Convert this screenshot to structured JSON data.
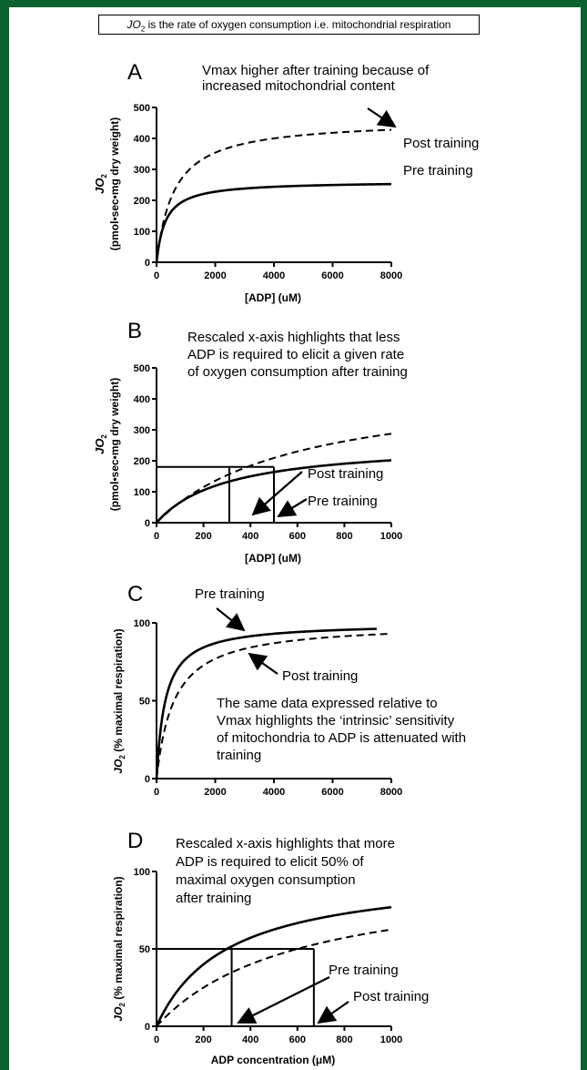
{
  "header": {
    "caption_jo": "JO",
    "caption_sub": "2",
    "caption_rest": " is the rate of oxygen consumption i.e. mitochondrial respiration"
  },
  "chart_data": [
    {
      "panel": "A",
      "type": "line",
      "xlabel": "[ADP] (uM)",
      "ylabel_main": "JO",
      "ylabel_sub": "2",
      "ylabel_units": "(pmol•sec•mg dry weight)",
      "xlim": [
        0,
        8000
      ],
      "ylim": [
        0,
        500
      ],
      "xticks": [
        0,
        2000,
        4000,
        6000,
        8000
      ],
      "yticks": [
        0,
        100,
        200,
        300,
        400,
        500
      ],
      "annotation": [
        "Vmax higher after training because of",
        "increased mitochondrial content"
      ],
      "series": [
        {
          "name": "Post training",
          "style": "dashed",
          "vmax": 460,
          "km": 600
        },
        {
          "name": "Pre training",
          "style": "solid",
          "vmax": 262,
          "km": 300
        }
      ],
      "labels": [
        "Post training",
        "Pre training"
      ]
    },
    {
      "panel": "B",
      "type": "line",
      "xlabel": "[ADP] (uM)",
      "ylabel_main": "JO",
      "ylabel_sub": "2",
      "ylabel_units": "(pmol•sec•mg dry weight)",
      "xlim": [
        0,
        1000
      ],
      "ylim": [
        0,
        500
      ],
      "xticks": [
        0,
        200,
        400,
        600,
        800,
        1000
      ],
      "yticks": [
        0,
        100,
        200,
        300,
        400,
        500
      ],
      "annotation": [
        "Rescaled x-axis highlights that less",
        "ADP is required to elicit a given rate",
        "of oxygen consumption after training"
      ],
      "series": [
        {
          "name": "Post training",
          "style": "dashed",
          "vmax": 460,
          "km": 600
        },
        {
          "name": "Pre training",
          "style": "solid",
          "vmax": 262,
          "km": 300
        }
      ],
      "reference": {
        "y": 180,
        "x_post": 310,
        "x_pre": 500
      },
      "labels": [
        "Post training",
        "Pre training"
      ]
    },
    {
      "panel": "C",
      "type": "line",
      "xlabel": "",
      "ylabel_main": "JO",
      "ylabel_sub": "2",
      "ylabel_units": "(% maximal respiration)",
      "xlim": [
        0,
        8000
      ],
      "ylim": [
        0,
        100
      ],
      "xticks": [
        0,
        2000,
        4000,
        6000,
        8000
      ],
      "yticks": [
        0,
        50,
        100
      ],
      "annotation": [
        "The same data expressed relative to",
        "Vmax highlights the ‘intrinsic’ sensitivity",
        "of mitochondria to ADP is attenuated with",
        "training"
      ],
      "series": [
        {
          "name": "Pre training",
          "style": "solid",
          "vmax": 100,
          "km": 300,
          "xmax": 7500
        },
        {
          "name": "Post training",
          "style": "dashed",
          "vmax": 100,
          "km": 600,
          "xmax": 8000
        }
      ],
      "labels": [
        "Pre training",
        "Post training"
      ]
    },
    {
      "panel": "D",
      "type": "line",
      "xlabel": "ADP concentration (μM)",
      "ylabel_main": "JO",
      "ylabel_sub": "2",
      "ylabel_units": "(% maximal respiration)",
      "xlim": [
        0,
        1000
      ],
      "ylim": [
        0,
        100
      ],
      "xticks": [
        0,
        200,
        400,
        600,
        800,
        1000
      ],
      "yticks": [
        0,
        50,
        100
      ],
      "annotation": [
        "Rescaled x-axis highlights that more",
        "ADP is required to elicit 50% of",
        "maximal oxygen consumption",
        "after training"
      ],
      "series": [
        {
          "name": "Pre training",
          "style": "solid",
          "vmax": 100,
          "km": 300
        },
        {
          "name": "Post training",
          "style": "dashed",
          "vmax": 100,
          "km": 600
        }
      ],
      "reference": {
        "y": 50,
        "x_pre": 320,
        "x_post": 670
      },
      "labels": [
        "Pre training",
        "Post training"
      ]
    }
  ]
}
